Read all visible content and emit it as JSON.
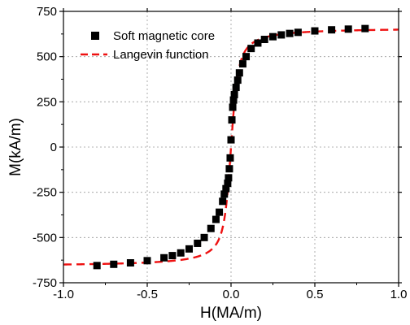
{
  "chart_data": {
    "type": "scatter",
    "xlabel": "H(MA/m)",
    "ylabel": "M(kA/m)",
    "xlim": [
      -1.0,
      1.0
    ],
    "ylim": [
      -750,
      750
    ],
    "xticks": [
      -1.0,
      -0.5,
      0.0,
      0.5,
      1.0
    ],
    "xtick_labels": [
      "-1.0",
      "-0.5",
      "0.0",
      "0.5",
      "1.0"
    ],
    "yticks": [
      -750,
      -500,
      -250,
      0,
      250,
      500,
      750
    ],
    "ytick_labels": [
      "-750",
      "-500",
      "-250",
      "0",
      "250",
      "500",
      "750"
    ],
    "grid": true,
    "legend_position": "top-left",
    "series": [
      {
        "name": "Soft magnetic core",
        "kind": "markers",
        "color": "#000000",
        "x": [
          -0.8,
          -0.7,
          -0.6,
          -0.5,
          -0.4,
          -0.35,
          -0.3,
          -0.25,
          -0.2,
          -0.16,
          -0.12,
          -0.09,
          -0.07,
          -0.05,
          -0.04,
          -0.03,
          -0.02,
          -0.015,
          -0.01,
          -0.005,
          0.0,
          0.005,
          0.01,
          0.015,
          0.02,
          0.03,
          0.04,
          0.05,
          0.07,
          0.09,
          0.12,
          0.16,
          0.2,
          0.25,
          0.3,
          0.35,
          0.4,
          0.5,
          0.6,
          0.7,
          0.8
        ],
        "y": [
          -655,
          -648,
          -640,
          -628,
          -612,
          -600,
          -585,
          -563,
          -532,
          -500,
          -450,
          -400,
          -360,
          -300,
          -260,
          -230,
          -200,
          -170,
          -120,
          -60,
          40,
          150,
          220,
          260,
          290,
          330,
          370,
          410,
          460,
          500,
          545,
          575,
          595,
          610,
          620,
          628,
          634,
          642,
          648,
          652,
          655
        ]
      },
      {
        "name": "Langevin function",
        "kind": "line",
        "color": "#ee1111",
        "dash": "dashed",
        "Ms": 660,
        "a": 0.0165
      }
    ]
  }
}
